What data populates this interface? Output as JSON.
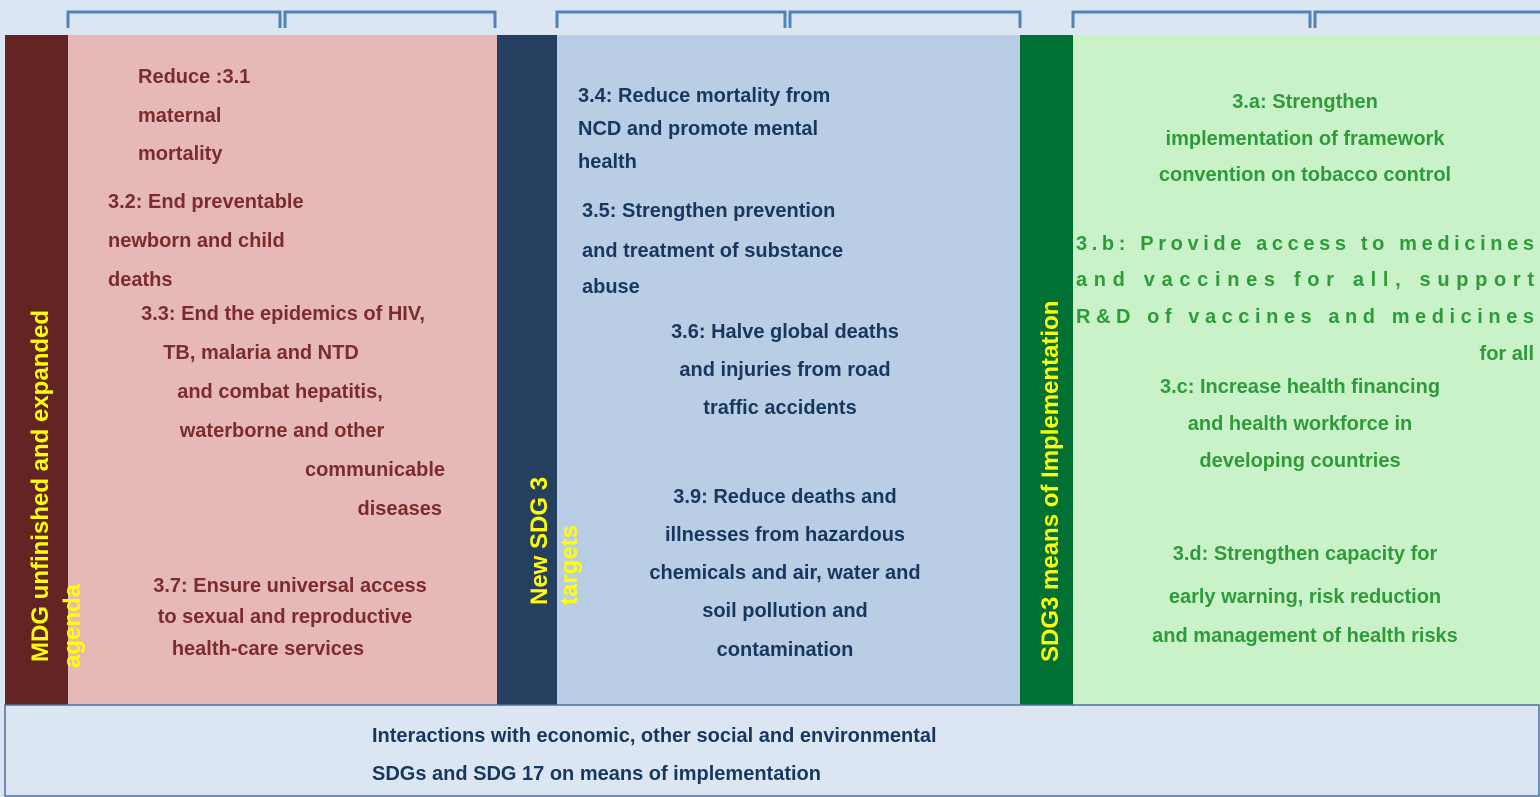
{
  "panels": [
    {
      "label": [
        "MDG unfinished and expanded",
        "agenda"
      ],
      "items": [
        {
          "lines": [
            "Reduce :3.1",
            "maternal",
            "mortality"
          ]
        },
        {
          "lines": [
            "3.2: End preventable",
            "newborn and child",
            "deaths"
          ]
        },
        {
          "lines": [
            "3.3: End the epidemics of HIV,",
            "TB, malaria and NTD",
            "and combat hepatitis,",
            "waterborne and other",
            "communicable",
            "diseases"
          ]
        },
        {
          "lines": [
            "3.7: Ensure universal access",
            "to sexual and reproductive",
            "health-care services"
          ]
        }
      ]
    },
    {
      "label": [
        "New SDG 3",
        "targets"
      ],
      "items": [
        {
          "lines": [
            "3.4: Reduce mortality from",
            "NCD and promote mental",
            "health"
          ]
        },
        {
          "lines": [
            "3.5: Strengthen prevention",
            "and treatment of substance",
            "abuse"
          ]
        },
        {
          "lines": [
            "3.6: Halve global deaths",
            "and injuries from road",
            "traffic accidents"
          ]
        },
        {
          "lines": [
            "3.9: Reduce deaths and",
            "illnesses from hazardous",
            "chemicals and air, water and",
            "soil pollution and",
            "contamination"
          ]
        }
      ]
    },
    {
      "label": [
        "SDG3 means of Implementation"
      ],
      "items": [
        {
          "lines": [
            "3.a: Strengthen",
            "implementation of framework",
            "convention on tobacco control"
          ]
        },
        {
          "lines": [
            "3.b: Provide access to medicines",
            "and vaccines for all, support",
            "R&D of vaccines and medicines",
            "for all"
          ]
        },
        {
          "lines": [
            "3.c: Increase health financing",
            "and health workforce in",
            "developing countries"
          ]
        },
        {
          "lines": [
            "3.d: Strengthen capacity for",
            "early warning, risk reduction",
            "and management of health risks"
          ]
        }
      ]
    }
  ],
  "footer": {
    "lines": [
      "Interactions with economic, other social and environmental",
      "SDGs and SDG 17 on means of implementation"
    ]
  }
}
